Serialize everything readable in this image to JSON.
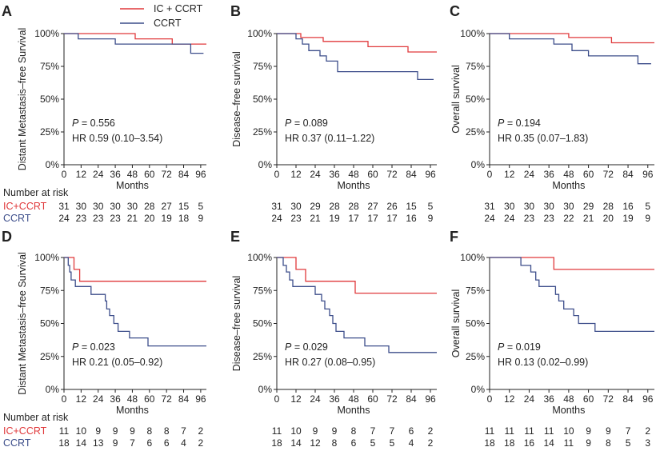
{
  "legend": {
    "items": [
      {
        "label": "IC + CCRT",
        "color": "#e0393b"
      },
      {
        "label": "CCRT",
        "color": "#3c4d8a"
      }
    ]
  },
  "risk_table": {
    "title": "Number at risk",
    "group_labels": [
      "IC+CCRT",
      "CCRT"
    ]
  },
  "axis": {
    "x_label": "Months",
    "x_ticks": [
      "0",
      "12",
      "24",
      "36",
      "48",
      "60",
      "72",
      "84",
      "96"
    ],
    "y_ticks": [
      "0%",
      "25%",
      "50%",
      "75%",
      "100%"
    ]
  },
  "chart_data": [
    {
      "panel": "A",
      "type": "line",
      "ylabel": "Distant Metastasis–free Survival",
      "p_text": "= 0.556",
      "hr_text": "HR 0.59 (0.10–3.54)",
      "xlim": [
        0,
        100
      ],
      "ylim": [
        0,
        100
      ],
      "series": [
        {
          "name": "IC + CCRT",
          "steps": [
            [
              0,
              100
            ],
            [
              50,
              100
            ],
            [
              50,
              96
            ],
            [
              76,
              96
            ],
            [
              76,
              92
            ],
            [
              100,
              92
            ]
          ]
        },
        {
          "name": "CCRT",
          "steps": [
            [
              0,
              100
            ],
            [
              10,
              100
            ],
            [
              10,
              96
            ],
            [
              36,
              96
            ],
            [
              36,
              92
            ],
            [
              89,
              92
            ],
            [
              89,
              85
            ],
            [
              98,
              85
            ]
          ]
        }
      ],
      "risk": {
        "ic": [
          "31",
          "30",
          "30",
          "30",
          "30",
          "28",
          "27",
          "15",
          "5"
        ],
        "ccrt": [
          "24",
          "23",
          "23",
          "23",
          "21",
          "20",
          "19",
          "18",
          "9"
        ]
      }
    },
    {
      "panel": "B",
      "type": "line",
      "ylabel": "Disease–free survival",
      "p_text": "= 0.089",
      "hr_text": "HR 0.37 (0.11–1.22)",
      "xlim": [
        0,
        100
      ],
      "ylim": [
        0,
        100
      ],
      "series": [
        {
          "name": "IC + CCRT",
          "steps": [
            [
              0,
              100
            ],
            [
              15,
              100
            ],
            [
              15,
              97
            ],
            [
              29,
              97
            ],
            [
              29,
              94
            ],
            [
              57,
              94
            ],
            [
              57,
              90
            ],
            [
              82,
              90
            ],
            [
              82,
              86
            ],
            [
              100,
              86
            ]
          ]
        },
        {
          "name": "CCRT",
          "steps": [
            [
              0,
              100
            ],
            [
              12,
              100
            ],
            [
              12,
              96
            ],
            [
              16,
              96
            ],
            [
              16,
              92
            ],
            [
              20,
              92
            ],
            [
              20,
              87
            ],
            [
              27,
              87
            ],
            [
              27,
              83
            ],
            [
              31,
              83
            ],
            [
              31,
              79
            ],
            [
              38,
              79
            ],
            [
              38,
              71
            ],
            [
              88,
              71
            ],
            [
              88,
              65
            ],
            [
              98,
              65
            ]
          ]
        }
      ],
      "risk": {
        "ic": [
          "31",
          "30",
          "29",
          "28",
          "28",
          "27",
          "26",
          "15",
          "5"
        ],
        "ccrt": [
          "24",
          "23",
          "21",
          "19",
          "17",
          "17",
          "17",
          "16",
          "9"
        ]
      }
    },
    {
      "panel": "C",
      "type": "line",
      "ylabel": "Overall survival",
      "p_text": "= 0.194",
      "hr_text": "HR 0.35 (0.07–1.83)",
      "xlim": [
        0,
        100
      ],
      "ylim": [
        0,
        100
      ],
      "series": [
        {
          "name": "IC + CCRT",
          "steps": [
            [
              0,
              100
            ],
            [
              48,
              100
            ],
            [
              48,
              97
            ],
            [
              74,
              97
            ],
            [
              74,
              93
            ],
            [
              100,
              93
            ]
          ]
        },
        {
          "name": "CCRT",
          "steps": [
            [
              0,
              100
            ],
            [
              12,
              100
            ],
            [
              12,
              96
            ],
            [
              39,
              96
            ],
            [
              39,
              92
            ],
            [
              50,
              92
            ],
            [
              50,
              87
            ],
            [
              60,
              87
            ],
            [
              60,
              83
            ],
            [
              90,
              83
            ],
            [
              90,
              77
            ],
            [
              98,
              77
            ]
          ]
        }
      ],
      "risk": {
        "ic": [
          "31",
          "30",
          "30",
          "30",
          "30",
          "29",
          "28",
          "16",
          "5"
        ],
        "ccrt": [
          "24",
          "24",
          "23",
          "23",
          "22",
          "21",
          "20",
          "19",
          "9"
        ]
      }
    },
    {
      "panel": "D",
      "type": "line",
      "ylabel": "Distant Metastasis–free Survival",
      "p_text": "= 0.023",
      "hr_text": "HR 0.21 (0.05–0.92)",
      "xlim": [
        0,
        100
      ],
      "ylim": [
        0,
        100
      ],
      "series": [
        {
          "name": "IC + CCRT",
          "steps": [
            [
              0,
              100
            ],
            [
              7,
              100
            ],
            [
              7,
              91
            ],
            [
              11,
              91
            ],
            [
              11,
              82
            ],
            [
              100,
              82
            ]
          ]
        },
        {
          "name": "CCRT",
          "steps": [
            [
              0,
              100
            ],
            [
              3,
              100
            ],
            [
              3,
              94
            ],
            [
              4,
              94
            ],
            [
              4,
              89
            ],
            [
              5,
              89
            ],
            [
              5,
              83
            ],
            [
              8,
              83
            ],
            [
              8,
              78
            ],
            [
              19,
              78
            ],
            [
              19,
              72
            ],
            [
              29,
              72
            ],
            [
              29,
              67
            ],
            [
              30,
              67
            ],
            [
              30,
              61
            ],
            [
              32,
              61
            ],
            [
              32,
              56
            ],
            [
              35,
              56
            ],
            [
              35,
              50
            ],
            [
              38,
              50
            ],
            [
              38,
              44
            ],
            [
              46,
              44
            ],
            [
              46,
              39
            ],
            [
              59,
              39
            ],
            [
              59,
              33
            ],
            [
              100,
              33
            ]
          ]
        }
      ],
      "risk": {
        "ic": [
          "11",
          "10",
          "9",
          "9",
          "9",
          "8",
          "8",
          "7",
          "2"
        ],
        "ccrt": [
          "18",
          "14",
          "13",
          "9",
          "7",
          "6",
          "6",
          "4",
          "2"
        ]
      }
    },
    {
      "panel": "E",
      "type": "line",
      "ylabel": "Disease–free survival",
      "p_text": "= 0.029",
      "hr_text": "HR 0.27 (0.08–0.95)",
      "xlim": [
        0,
        100
      ],
      "ylim": [
        0,
        100
      ],
      "series": [
        {
          "name": "IC + CCRT",
          "steps": [
            [
              0,
              100
            ],
            [
              12,
              100
            ],
            [
              12,
              91
            ],
            [
              18,
              91
            ],
            [
              18,
              82
            ],
            [
              49,
              82
            ],
            [
              49,
              73
            ],
            [
              100,
              73
            ]
          ]
        },
        {
          "name": "CCRT",
          "steps": [
            [
              0,
              100
            ],
            [
              4,
              100
            ],
            [
              4,
              94
            ],
            [
              6,
              94
            ],
            [
              6,
              89
            ],
            [
              8,
              89
            ],
            [
              8,
              83
            ],
            [
              10,
              83
            ],
            [
              10,
              78
            ],
            [
              24,
              78
            ],
            [
              24,
              72
            ],
            [
              28,
              72
            ],
            [
              28,
              67
            ],
            [
              30,
              67
            ],
            [
              30,
              61
            ],
            [
              33,
              61
            ],
            [
              33,
              56
            ],
            [
              35,
              56
            ],
            [
              35,
              50
            ],
            [
              37,
              50
            ],
            [
              37,
              44
            ],
            [
              42,
              44
            ],
            [
              42,
              39
            ],
            [
              55,
              39
            ],
            [
              55,
              33
            ],
            [
              70,
              33
            ],
            [
              70,
              28
            ],
            [
              100,
              28
            ]
          ]
        }
      ],
      "risk": {
        "ic": [
          "11",
          "10",
          "9",
          "9",
          "8",
          "7",
          "7",
          "6",
          "2"
        ],
        "ccrt": [
          "18",
          "14",
          "12",
          "8",
          "6",
          "5",
          "5",
          "4",
          "2"
        ]
      }
    },
    {
      "panel": "F",
      "type": "line",
      "ylabel": "Overall survival",
      "p_text": "= 0.019",
      "hr_text": "HR 0.13 (0.02–0.99)",
      "xlim": [
        0,
        100
      ],
      "ylim": [
        0,
        100
      ],
      "series": [
        {
          "name": "IC + CCRT",
          "steps": [
            [
              0,
              100
            ],
            [
              39,
              100
            ],
            [
              39,
              91
            ],
            [
              100,
              91
            ]
          ]
        },
        {
          "name": "CCRT",
          "steps": [
            [
              0,
              100
            ],
            [
              19,
              100
            ],
            [
              19,
              94
            ],
            [
              25,
              94
            ],
            [
              25,
              89
            ],
            [
              28,
              89
            ],
            [
              28,
              83
            ],
            [
              30,
              83
            ],
            [
              30,
              78
            ],
            [
              40,
              78
            ],
            [
              40,
              72
            ],
            [
              42,
              72
            ],
            [
              42,
              67
            ],
            [
              45,
              67
            ],
            [
              45,
              61
            ],
            [
              51,
              61
            ],
            [
              51,
              56
            ],
            [
              54,
              56
            ],
            [
              54,
              50
            ],
            [
              64,
              50
            ],
            [
              64,
              44
            ],
            [
              100,
              44
            ]
          ]
        }
      ],
      "risk": {
        "ic": [
          "11",
          "11",
          "11",
          "11",
          "10",
          "9",
          "9",
          "7",
          "2"
        ],
        "ccrt": [
          "18",
          "18",
          "16",
          "14",
          "11",
          "9",
          "8",
          "5",
          "3"
        ]
      }
    }
  ]
}
